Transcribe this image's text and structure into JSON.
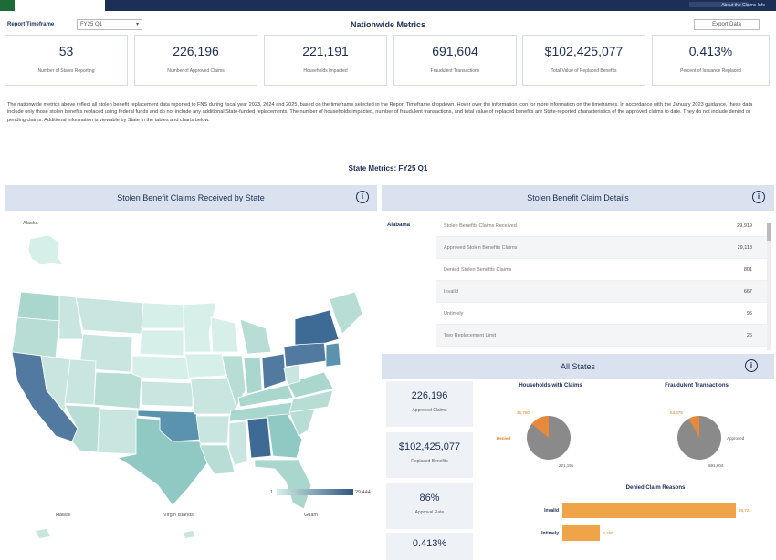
{
  "header": {
    "nav_link": "About the Claims Info"
  },
  "controls": {
    "timeframe_label": "Report Timeframe",
    "timeframe_value": "FY25 Q1",
    "nationwide_title": "Nationwide Metrics",
    "export_label": "Export Data"
  },
  "kpis": [
    {
      "value": "53",
      "label": "Number of States Reporting"
    },
    {
      "value": "226,196",
      "label": "Number of Approved Claims"
    },
    {
      "value": "221,191",
      "label": "Households Impacted"
    },
    {
      "value": "691,604",
      "label": "Fraudulent Transactions"
    },
    {
      "value": "$102,425,077",
      "label": "Total Value of Replaced Benefits"
    },
    {
      "value": "0.413%",
      "label": "Percent of Issuance Replaced"
    }
  ],
  "description": "The nationwide metrics above reflect all stolen benefit replacement data reported to FNS during fiscal year 2023, 2024 and 2025, based on the timeframe selected in the Report Timeframe dropdown. Hover over the information icon for more information on the timeframes. In accordance with the January 2023 guidance, these data include only those stolen benefits replaced using federal funds and do not include any additional State-funded replacements. The number of households impacted, number of fraudulent transactions, and total value of replaced benefits are State-reported characteristics of the approved claims to date. They do not include denied or pending claims. Additional information is viewable by State in the tables and charts below.",
  "state_metrics_title": "State Metrics: FY25 Q1",
  "map_panel": {
    "title": "Stolen Benefit Claims Received by State",
    "alaska_label": "Alaska",
    "hawaii_label": "Hawaii",
    "virgin_islands_label": "Virgin Islands",
    "guam_label": "Guam",
    "legend_min": "1",
    "legend_max": "29,444",
    "color_low": "#d6efe8",
    "color_high": "#3e6a96"
  },
  "details_panel": {
    "title": "Stolen Benefit Claim Details",
    "state": "Alabama",
    "rows": [
      {
        "name": "Stolen Benefits Claims Received",
        "value": "29,919"
      },
      {
        "name": "Approved Stolen Benefits Claims",
        "value": "29,118"
      },
      {
        "name": "Denied Stolen Benefits Claims",
        "value": "801"
      },
      {
        "name": "Invalid",
        "value": "667"
      },
      {
        "name": "Untimely",
        "value": "96"
      },
      {
        "name": "Two Replacement Limit",
        "value": "26"
      }
    ]
  },
  "all_states": {
    "title": "All States",
    "minis": [
      {
        "value": "226,196",
        "label": "Approved Claims"
      },
      {
        "value": "$102,425,077",
        "label": "Replaced Benefits"
      },
      {
        "value": "86%",
        "label": "Approval Rate"
      },
      {
        "value": "0.413%",
        "label": ""
      }
    ],
    "households_title": "Households with Claims",
    "households_denied_value": "35,760",
    "households_denied_label": "Denied",
    "households_approved_value": "221,191",
    "households_denied_fraction": 0.14,
    "fraud_title": "Fraudulent Transactions",
    "fraud_denied_value": "63,379",
    "fraud_approved_label": "Approved",
    "fraud_approved_value": "691,604",
    "fraud_denied_fraction": 0.08,
    "denied_title": "Denied Claim Reasons",
    "denied_bars": [
      {
        "name": "Invalid",
        "value": 28721,
        "display": "28,721"
      },
      {
        "name": "Untimely",
        "value": 6250,
        "display": "6,250"
      }
    ],
    "pie_gray": "#8a8a8a",
    "pie_orange": "#e8883a"
  }
}
